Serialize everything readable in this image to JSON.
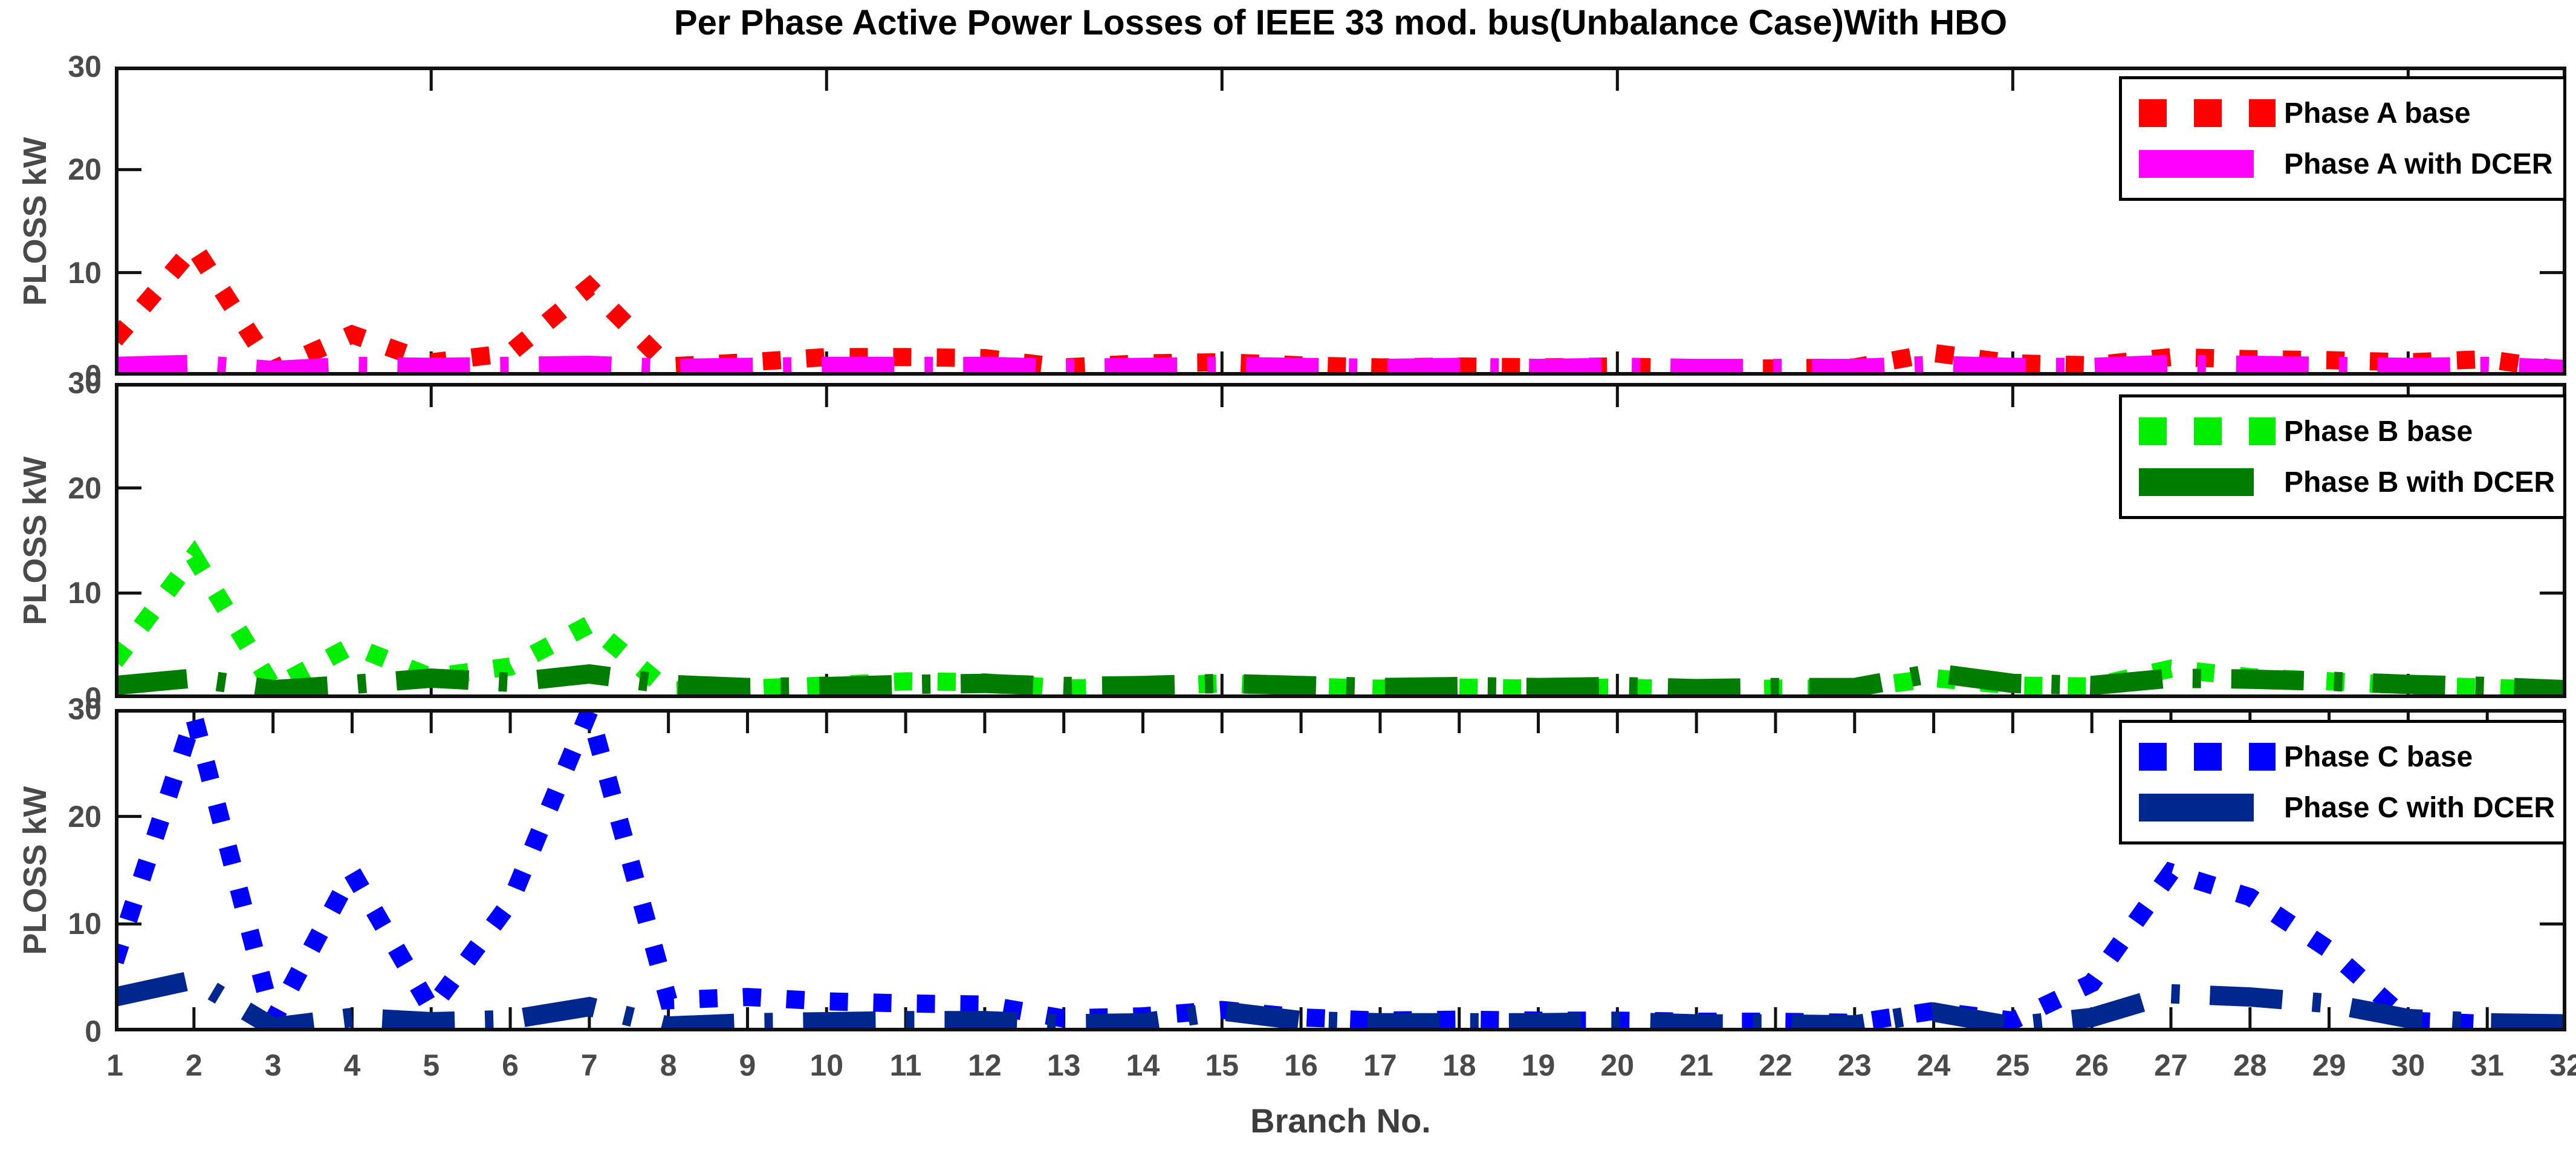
{
  "figure": {
    "title": "Per Phase Active Power Losses of IEEE 33 mod. bus(Unbalance Case)With HBO",
    "xlabel": "Branch No.",
    "background": "#ffffff",
    "axis_color": "#111111",
    "tick_text_color": "#4a4a4a"
  },
  "branches": [
    1,
    2,
    3,
    4,
    5,
    6,
    7,
    8,
    9,
    10,
    11,
    12,
    13,
    14,
    15,
    16,
    17,
    18,
    19,
    20,
    21,
    22,
    23,
    24,
    25,
    26,
    27,
    28,
    29,
    30,
    31,
    32
  ],
  "chart_data": [
    {
      "type": "line",
      "panel": "Phase A",
      "ylabel": "PLOSS  kW",
      "ylim": [
        0,
        30
      ],
      "yticks": [
        0,
        10,
        20,
        30
      ],
      "unlabeled_xticks": [
        5,
        10,
        15,
        20,
        25,
        30
      ],
      "grid": false,
      "legend_position": "top-right",
      "series": [
        {
          "name": "Phase A base",
          "color": "#ff0000",
          "style": "dotted",
          "values": [
            3.5,
            12.5,
            0.6,
            4.0,
            1.3,
            2.2,
            8.6,
            0.9,
            1.3,
            1.8,
            1.8,
            1.7,
            0.8,
            1.2,
            1.3,
            1.0,
            0.8,
            0.9,
            0.8,
            0.9,
            0.7,
            0.7,
            0.8,
            2.2,
            1.2,
            1.0,
            1.8,
            1.6,
            1.5,
            1.3,
            1.6,
            0.5
          ]
        },
        {
          "name": "Phase A with DCER",
          "color": "#ff00ff",
          "style": "dashdot",
          "values": [
            0.9,
            1.1,
            0.5,
            0.9,
            0.8,
            0.9,
            1.0,
            0.7,
            0.8,
            0.9,
            0.9,
            0.9,
            0.7,
            0.8,
            0.9,
            0.8,
            0.7,
            0.8,
            0.7,
            0.8,
            0.7,
            0.7,
            0.7,
            1.0,
            0.8,
            0.8,
            1.1,
            1.0,
            0.9,
            0.8,
            0.9,
            0.6
          ]
        }
      ]
    },
    {
      "type": "line",
      "panel": "Phase B",
      "ylabel": "PLOSS  kW",
      "ylim": [
        0,
        30
      ],
      "yticks": [
        0,
        10,
        20,
        30
      ],
      "unlabeled_xticks": [
        5,
        10,
        15,
        20,
        25,
        30
      ],
      "grid": false,
      "legend_position": "top-right",
      "series": [
        {
          "name": "Phase B base",
          "color": "#00ee00",
          "style": "dotted",
          "values": [
            3.5,
            13.5,
            1.0,
            5.0,
            2.0,
            3.0,
            7.0,
            0.7,
            0.9,
            1.2,
            1.6,
            1.5,
            0.9,
            1.1,
            1.4,
            1.1,
            0.9,
            1.0,
            0.9,
            1.0,
            0.8,
            0.9,
            0.9,
            1.9,
            1.2,
            1.1,
            2.8,
            2.0,
            1.6,
            1.2,
            1.0,
            0.7
          ]
        },
        {
          "name": "Phase B with DCER",
          "color": "#007d00",
          "style": "dashdot",
          "values": [
            1.2,
            1.9,
            0.8,
            1.3,
            1.9,
            1.5,
            2.3,
            1.3,
            1.0,
            1.1,
            1.3,
            1.4,
            1.1,
            1.2,
            1.4,
            1.2,
            1.0,
            1.1,
            1.0,
            1.1,
            0.9,
            1.0,
            1.0,
            2.4,
            1.4,
            1.2,
            1.9,
            1.8,
            1.6,
            1.3,
            1.1,
            0.8
          ]
        }
      ]
    },
    {
      "type": "line",
      "panel": "Phase C",
      "ylabel": "PLOSS  kW",
      "ylim": [
        0,
        30
      ],
      "yticks": [
        0,
        10,
        20,
        30
      ],
      "labeled_xticks": [
        1,
        2,
        3,
        4,
        5,
        6,
        7,
        8,
        9,
        10,
        11,
        12,
        13,
        14,
        15,
        16,
        17,
        18,
        19,
        20,
        21,
        22,
        23,
        24,
        25,
        26,
        27,
        28,
        29,
        30,
        31,
        32
      ],
      "grid": false,
      "legend_position": "top-right",
      "series": [
        {
          "name": "Phase C base",
          "color": "#0000ff",
          "style": "dotted",
          "values": [
            6.5,
            29.3,
            1.0,
            14.8,
            2.1,
            12.0,
            29.8,
            2.9,
            3.2,
            2.8,
            2.6,
            2.5,
            1.2,
            1.4,
            2.0,
            1.3,
            1.0,
            1.1,
            1.0,
            1.0,
            0.9,
            0.9,
            0.8,
            1.9,
            1.0,
            4.5,
            14.8,
            12.5,
            7.6,
            1.0,
            0.7,
            0.5
          ]
        },
        {
          "name": "Phase C with DCER",
          "color": "#00278e",
          "style": "dashdot",
          "values": [
            3.2,
            4.8,
            0.4,
            1.3,
            0.9,
            1.1,
            2.3,
            0.5,
            0.8,
            0.9,
            1.0,
            1.0,
            0.7,
            0.8,
            1.9,
            1.0,
            0.8,
            0.8,
            0.8,
            0.9,
            0.7,
            0.7,
            0.6,
            1.8,
            0.5,
            1.3,
            3.5,
            3.2,
            2.6,
            1.2,
            0.8,
            0.7
          ]
        }
      ]
    }
  ]
}
